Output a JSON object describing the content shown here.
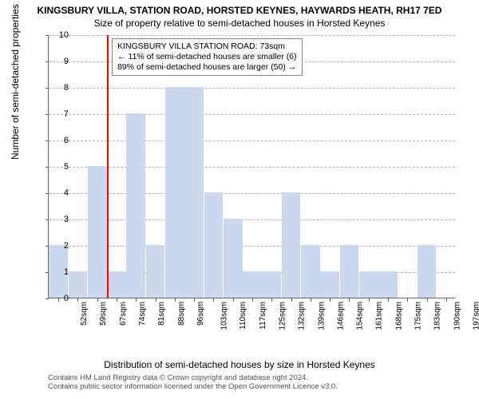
{
  "titles": {
    "line1": "KINGSBURY VILLA, STATION ROAD, HORSTED KEYNES, HAYWARDS HEATH, RH17 7ED",
    "line2": "Size of property relative to semi-detached houses in Horsted Keynes"
  },
  "chart": {
    "type": "histogram",
    "ylabel": "Number of semi-detached properties",
    "xlabel": "Distribution of semi-detached houses by size in Horsted Keynes",
    "ylim": [
      0,
      10
    ],
    "ytick_step": 1,
    "background_color": "#ffffff",
    "grid_color": "#888888",
    "bar_color": "#cdd8ef",
    "bar_width_ratio": 0.98,
    "categories": [
      "52sqm",
      "59sqm",
      "67sqm",
      "74sqm",
      "81sqm",
      "88sqm",
      "96sqm",
      "103sqm",
      "110sqm",
      "117sqm",
      "125sqm",
      "132sqm",
      "139sqm",
      "146sqm",
      "154sqm",
      "161sqm",
      "168sqm",
      "175sqm",
      "183sqm",
      "190sqm",
      "197sqm"
    ],
    "values": [
      2,
      1,
      5,
      1,
      7,
      2,
      8,
      8,
      4,
      3,
      1,
      1,
      4,
      2,
      1,
      2,
      1,
      1,
      0,
      2,
      0
    ],
    "marker": {
      "color": "#ff0000",
      "position_category_index": 3,
      "position_fraction_in_bin": 0.0
    },
    "annotation": {
      "lines": [
        "KINGSBURY VILLA STATION ROAD: 73sqm",
        "← 11% of semi-detached houses are smaller (6)",
        "89% of semi-detached houses are larger (50) →"
      ],
      "border_color": "#888888",
      "background_color": "#ffffff",
      "fontsize": 10.5
    },
    "axis_fontsize": 11,
    "label_fontsize": 12,
    "tick_fontsize": 10
  },
  "footer": {
    "line1": "Contains HM Land Registry data © Crown copyright and database right 2024.",
    "line2": "Contains public sector information licensed under the Open Government Licence v3.0."
  }
}
